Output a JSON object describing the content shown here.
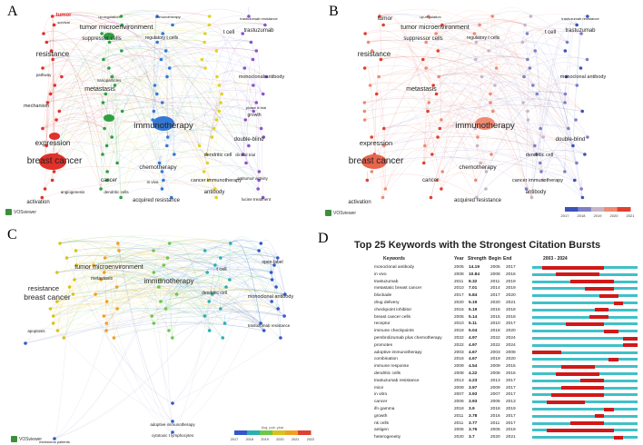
{
  "panels": {
    "a": {
      "letter": "A"
    },
    "b": {
      "letter": "B"
    },
    "c": {
      "letter": "C"
    },
    "d": {
      "letter": "D"
    }
  },
  "vosviewer_label": "VOSviewer",
  "colors": {
    "red": "#e0312a",
    "green": "#2ea042",
    "blue": "#3578d4",
    "yellow": "#e2d21e",
    "purple": "#8a54c8",
    "cyan": "#28a6d8"
  },
  "network_a": {
    "labels": {
      "tumor": "tumor",
      "survival": "survival",
      "up_regulation": "up-regulation",
      "immunotherapy_top": "immunotherapy",
      "trastuzumab_resistance": "trastuzumab resistance",
      "tumor_microenvironment": "tumor microenvironment",
      "regulatory_t_cells": "regulatory t cells",
      "t_cell": "t cell",
      "trastuzumab": "trastuzumab",
      "suppressor_cells": "suppressor cells",
      "resistance": "resistance",
      "metastasis": "metastasis",
      "immunotherapy": "immunotherapy",
      "monoclonal_antibody": "monoclonal antibody",
      "expression": "expression",
      "chemotherapy": "chemotherapy",
      "dendritic_cell": "dendritic cell",
      "double_blind": "double-blind",
      "breast_cancer": "breast cancer",
      "cancer": "cancer",
      "cancer_immunotherapy": "cancer immunotherapy",
      "antitumor_activity": "antitumor activity",
      "antibody": "antibody",
      "activation": "activation",
      "acquired_resistance": "acquired resistance",
      "lucine_treatment": "lucine treatment",
      "growth": "growth",
      "phase_ii_trial": "phase iii trial",
      "clinical_trial": "clinical trial",
      "mechanism": "mechanism",
      "pathway": "pathway",
      "angiogenesis": "angiogenesis",
      "dendritic_cells": "dendritic cells",
      "in_vivo": "in vivo",
      "nanoparticles": "nanoparticles"
    }
  },
  "network_b": {
    "legend_ticks": [
      "2017",
      "2018",
      "2019",
      "2020",
      "2021"
    ]
  },
  "network_c": {
    "labels": {
      "resistance": "resistance",
      "breast_cancer": "breast cancer",
      "tumor_microenvironment": "tumor microenvironment",
      "immunotherapy": "immunotherapy",
      "monoclonal_antibody": "monoclonal antibody",
      "open_label": "open-label",
      "melanoma_patients": "melanoma patients",
      "apoptosis": "apoptosis",
      "metastasis": "metastasis",
      "t_cell": "t cell",
      "dendritic_cell": "dendritic cell",
      "trastuzumab_resistance": "trastuzumab resistance",
      "adoptive_immunotherapy": "adoptive immunotherapy",
      "cytotoxic_t_lymphocytes": "cytotoxic t lymphocytes"
    },
    "legend_ticks": [
      "2017",
      "2018",
      "2019",
      "2020",
      "2021",
      "2022"
    ],
    "legend_caption": "Avg. pub. year"
  },
  "bursts": {
    "title": "Top 25 Keywords with the Strongest Citation Bursts",
    "headers": {
      "keywords": "Keywords",
      "year": "Year",
      "strength": "Strength",
      "begin": "Begin",
      "end": "End",
      "range": "2003 - 2024"
    },
    "range_start": 2003,
    "range_end": 2024,
    "rows": [
      {
        "keyword": "monoclonal antibody",
        "year": "2005",
        "strength": "14.19",
        "begin": "2005",
        "end": "2017",
        "b": 2005,
        "e": 2017
      },
      {
        "keyword": "in vivo",
        "year": "2008",
        "strength": "10.84",
        "begin": "2008",
        "end": "2016",
        "b": 2008,
        "e": 2016
      },
      {
        "keyword": "trastuzumab",
        "year": "2011",
        "strength": "8.32",
        "begin": "2011",
        "end": "2019",
        "b": 2011,
        "e": 2019
      },
      {
        "keyword": "metastatic breast cancer",
        "year": "2010",
        "strength": "7.01",
        "begin": "2014",
        "end": "2019",
        "b": 2014,
        "e": 2019
      },
      {
        "keyword": "blockade",
        "year": "2017",
        "strength": "5.84",
        "begin": "2017",
        "end": "2020",
        "b": 2017,
        "e": 2020
      },
      {
        "keyword": "drug delivery",
        "year": "2020",
        "strength": "5.19",
        "begin": "2020",
        "end": "2021",
        "b": 2020,
        "e": 2021
      },
      {
        "keyword": "checkpoint inhibitor",
        "year": "2016",
        "strength": "5.19",
        "begin": "2016",
        "end": "2018",
        "b": 2016,
        "e": 2018
      },
      {
        "keyword": "breast cancer cells",
        "year": "2005",
        "strength": "5.14",
        "begin": "2015",
        "end": "2018",
        "b": 2015,
        "e": 2018
      },
      {
        "keyword": "receptor",
        "year": "2010",
        "strength": "5.11",
        "begin": "2010",
        "end": "2017",
        "b": 2010,
        "e": 2017
      },
      {
        "keyword": "immune checkpoints",
        "year": "2018",
        "strength": "5.04",
        "begin": "2018",
        "end": "2020",
        "b": 2018,
        "e": 2020
      },
      {
        "keyword": "pembrolizumab plus chemotherapy",
        "year": "2022",
        "strength": "4.97",
        "begin": "2022",
        "end": "2024",
        "b": 2022,
        "e": 2024
      },
      {
        "keyword": "promotes",
        "year": "2022",
        "strength": "4.97",
        "begin": "2022",
        "end": "2024",
        "b": 2022,
        "e": 2024
      },
      {
        "keyword": "adoptive immunotherapy",
        "year": "2003",
        "strength": "4.67",
        "begin": "2003",
        "end": "2008",
        "b": 2003,
        "e": 2008
      },
      {
        "keyword": "combination",
        "year": "2016",
        "strength": "4.67",
        "begin": "2019",
        "end": "2020",
        "b": 2019,
        "e": 2020
      },
      {
        "keyword": "immune response",
        "year": "2009",
        "strength": "4.54",
        "begin": "2009",
        "end": "2015",
        "b": 2009,
        "e": 2015
      },
      {
        "keyword": "dendritic cells",
        "year": "2008",
        "strength": "4.22",
        "begin": "2008",
        "end": "2016",
        "b": 2008,
        "e": 2016
      },
      {
        "keyword": "trastuzumab resistance",
        "year": "2013",
        "strength": "4.23",
        "begin": "2013",
        "end": "2017",
        "b": 2013,
        "e": 2017
      },
      {
        "keyword": "mice",
        "year": "2009",
        "strength": "3.97",
        "begin": "2009",
        "end": "2017",
        "b": 2009,
        "e": 2017
      },
      {
        "keyword": "in vitro",
        "year": "2007",
        "strength": "3.93",
        "begin": "2007",
        "end": "2017",
        "b": 2007,
        "e": 2017
      },
      {
        "keyword": "cancer",
        "year": "2006",
        "strength": "3.93",
        "begin": "2006",
        "end": "2013",
        "b": 2006,
        "e": 2013
      },
      {
        "keyword": "ifn gamma",
        "year": "2018",
        "strength": "3.9",
        "begin": "2018",
        "end": "2019",
        "b": 2018,
        "e": 2019
      },
      {
        "keyword": "growth",
        "year": "2011",
        "strength": "3.78",
        "begin": "2016",
        "end": "2017",
        "b": 2016,
        "e": 2017
      },
      {
        "keyword": "nk cells",
        "year": "2011",
        "strength": "3.77",
        "begin": "2011",
        "end": "2017",
        "b": 2011,
        "e": 2017
      },
      {
        "keyword": "antigen",
        "year": "2006",
        "strength": "3.76",
        "begin": "2006",
        "end": "2019",
        "b": 2006,
        "e": 2019
      },
      {
        "keyword": "heterogeneity",
        "year": "2020",
        "strength": "3.7",
        "begin": "2020",
        "end": "2021",
        "b": 2020,
        "e": 2021
      }
    ]
  }
}
